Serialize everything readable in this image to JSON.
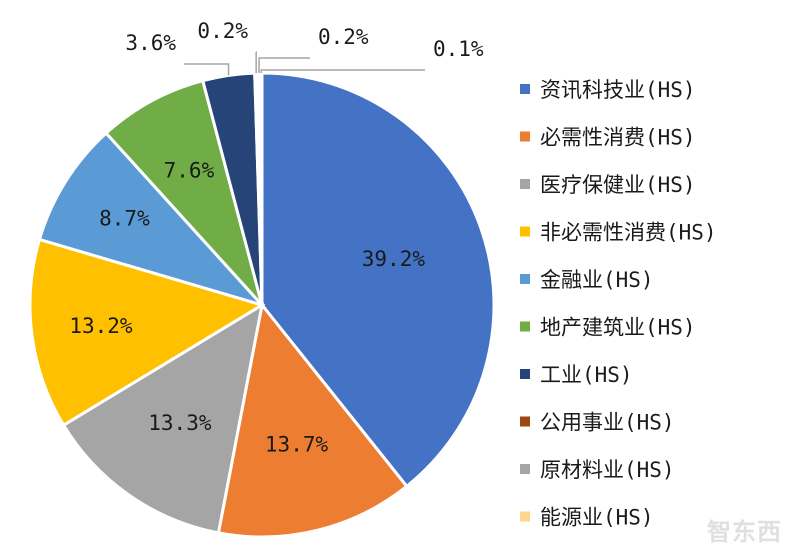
{
  "chart_data": {
    "type": "pie",
    "title": "",
    "start_angle_deg": 0,
    "direction": "clockwise",
    "legend_position": "right",
    "slices": [
      {
        "name": "资讯科技业(HS)",
        "value": 39.2,
        "label": "39.2%",
        "color": "#4472C4"
      },
      {
        "name": "必需性消费(HS)",
        "value": 13.7,
        "label": "13.7%",
        "color": "#ED7D31"
      },
      {
        "name": "医疗保健业(HS)",
        "value": 13.3,
        "label": "13.3%",
        "color": "#A5A5A5"
      },
      {
        "name": "非必需性消费(HS)",
        "value": 13.2,
        "label": "13.2%",
        "color": "#FFC000"
      },
      {
        "name": "金融业(HS)",
        "value": 8.7,
        "label": "8.7%",
        "color": "#5B9BD5"
      },
      {
        "name": "地产建筑业(HS)",
        "value": 7.6,
        "label": "7.6%",
        "color": "#70AD47"
      },
      {
        "name": "工业(HS)",
        "value": 3.6,
        "label": "3.6%",
        "color": "#264478"
      },
      {
        "name": "公用事业(HS)",
        "value": 0.2,
        "label": "0.2%",
        "color": "#9E480E"
      },
      {
        "name": "原材料业(HS)",
        "value": 0.2,
        "label": "0.2%",
        "color": "#A5A5A5"
      },
      {
        "name": "能源业(HS)",
        "value": 0.1,
        "label": "0.1%",
        "color": "#FFD78A"
      }
    ]
  },
  "watermark": "智东西"
}
